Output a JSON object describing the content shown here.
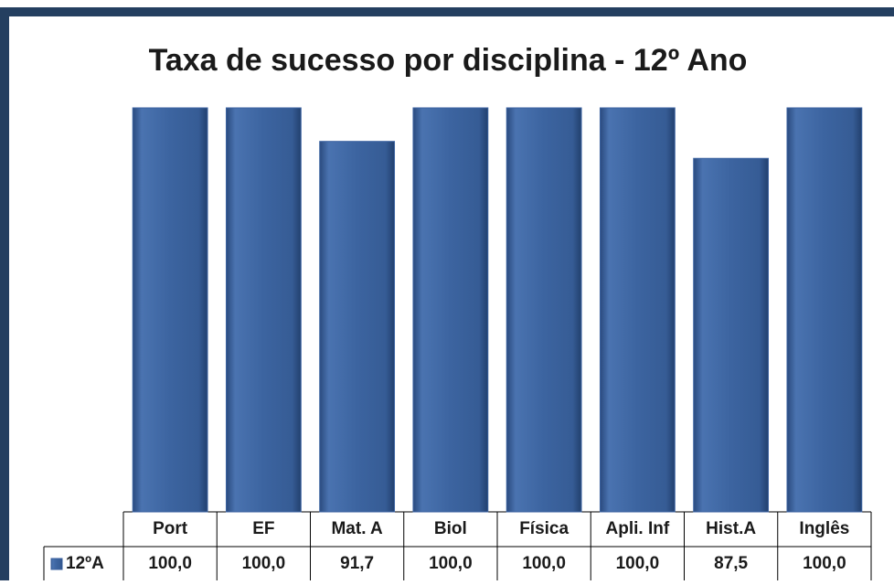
{
  "chart_data": {
    "type": "bar",
    "title": "Taxa de sucesso por disciplina - 12º Ano",
    "categories": [
      "Port",
      "EF",
      "Mat. A",
      "Biol",
      "Física",
      "Apli. Inf",
      "Hist.A",
      "Inglês"
    ],
    "series": [
      {
        "name": "12ºA",
        "color": "#3b62a0",
        "values": [
          100,
          100,
          91.7,
          100,
          100,
          100,
          87.5,
          100
        ],
        "value_labels": [
          "100,0",
          "100,0",
          "91,7",
          "100,0",
          "100,0",
          "100,0",
          "87,5",
          "100,0"
        ]
      }
    ],
    "ylim": [
      0,
      100
    ],
    "grid": false
  }
}
